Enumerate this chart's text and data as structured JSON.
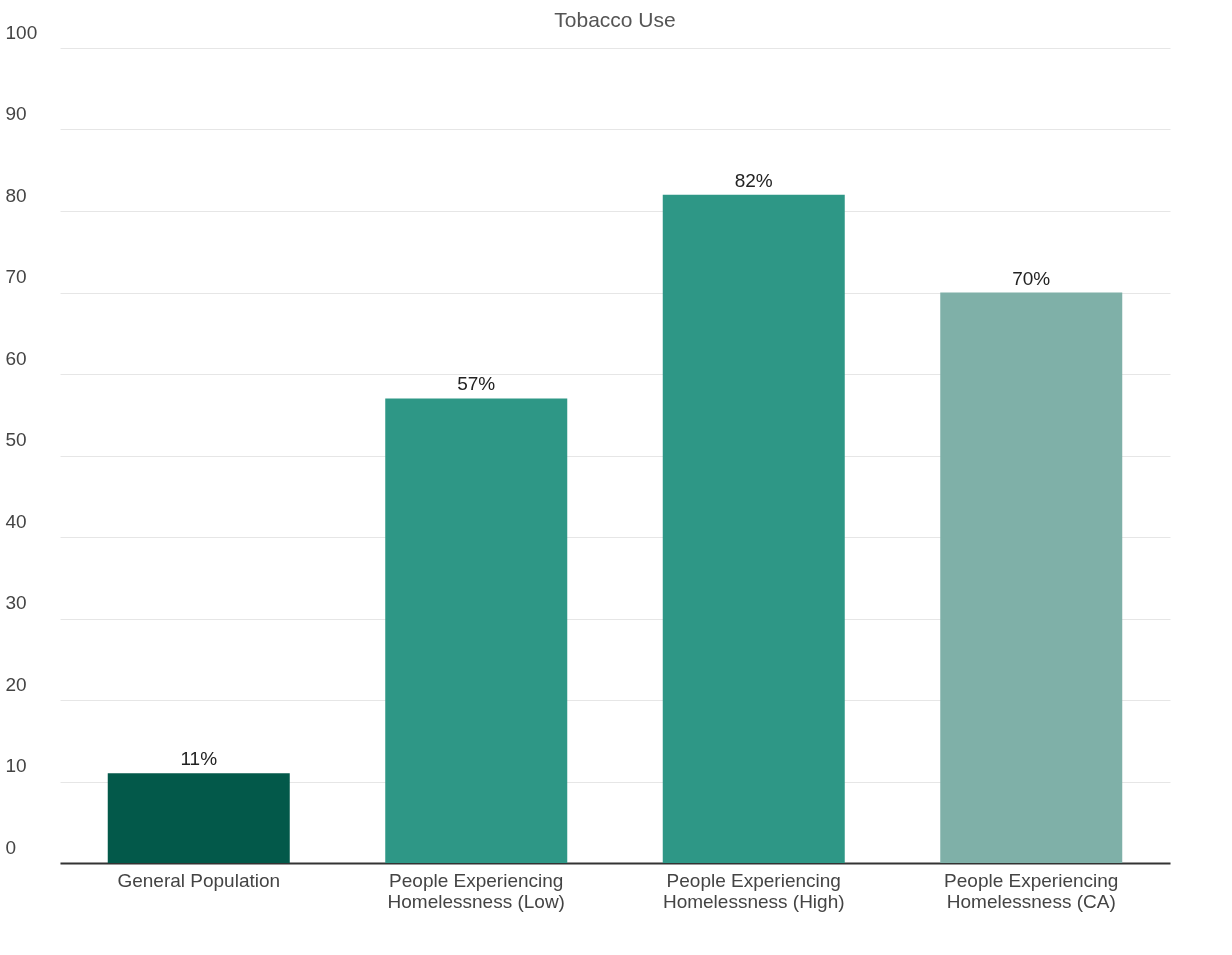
{
  "chart_data": {
    "type": "bar",
    "title": "Tobacco Use",
    "categories": [
      "General Population",
      "People Experiencing Homelessness (Low)",
      "People Experiencing Homelessness (High)",
      "People Experiencing Homelessness (CA)"
    ],
    "values": [
      11,
      57,
      82,
      70
    ],
    "colors": [
      "#03594a",
      "#2e9786",
      "#2e9786",
      "#7fb0a8"
    ],
    "value_labels": [
      "11%",
      "57%",
      "82%",
      "70%"
    ],
    "ylim": [
      0,
      100
    ],
    "yticks": [
      0,
      10,
      20,
      30,
      40,
      50,
      60,
      70,
      80,
      90,
      100
    ],
    "grid": "y",
    "legend": false
  }
}
